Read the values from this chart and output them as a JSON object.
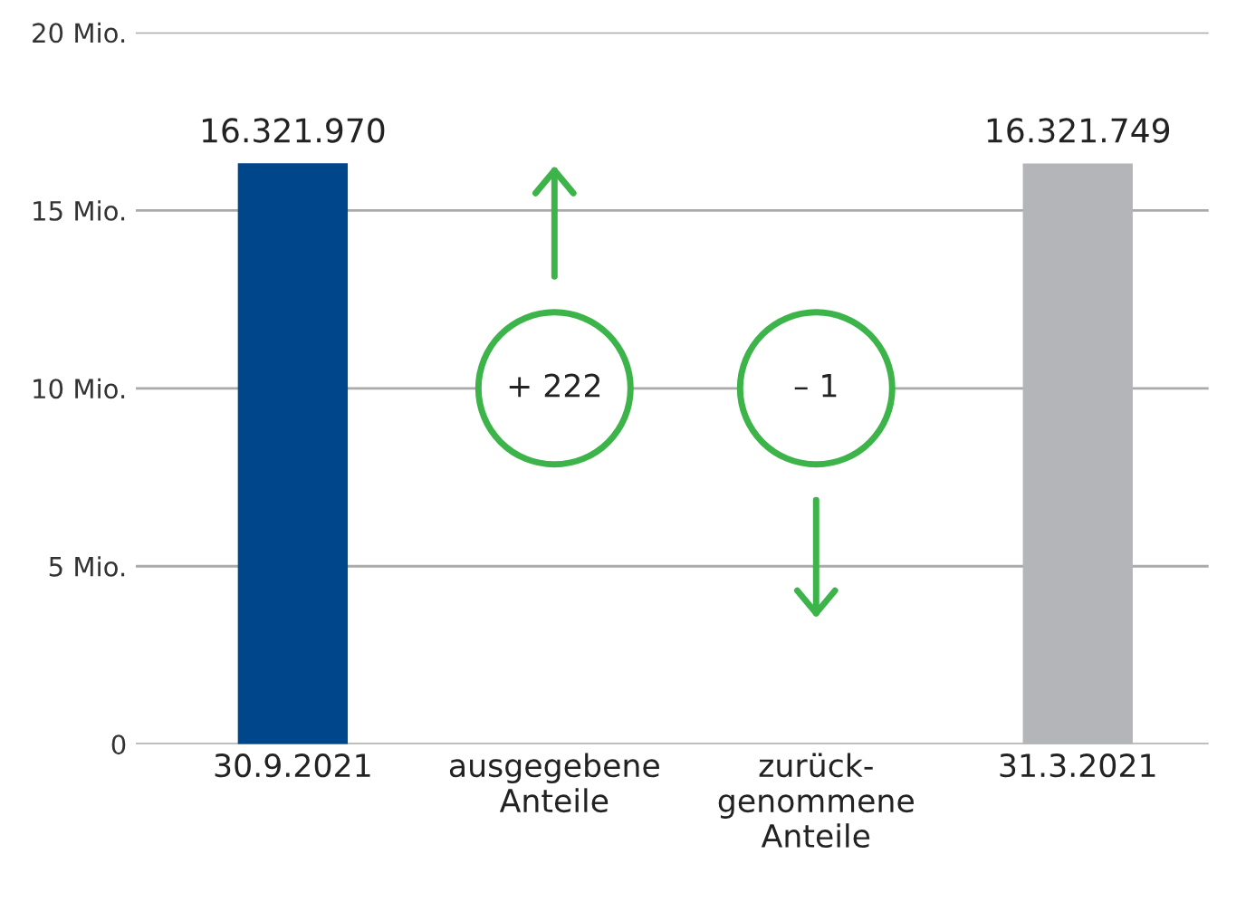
{
  "chart_data": {
    "type": "bar",
    "categories": [
      "30.9.2021",
      "ausgegebene\nAnteile",
      "zurück-\ngenommene\nAnteile",
      "31.3.2021"
    ],
    "values": [
      16.32197,
      null,
      null,
      16.321749
    ],
    "colors": [
      "#00468b",
      "#3cb44a",
      "#3cb44a",
      "#b4b5b9"
    ],
    "annotations": [
      {
        "text": "16.321.970",
        "x": "30.9.2021",
        "y": 16.32197
      },
      "+ 222",
      "– 1",
      {
        "text": "16.321.749",
        "x": "31.3.2021",
        "y": 16.321749
      }
    ],
    "ylim": [
      0,
      20
    ],
    "yticks": [
      0,
      {
        "value": 5,
        "label": "5 Mio."
      },
      {
        "value": 10,
        "label": "10 Mio."
      },
      {
        "value": 15,
        "label": "15 Mio."
      },
      {
        "value": 20,
        "label": "20 Mio."
      }
    ],
    "grid": "y",
    "legend": false
  }
}
